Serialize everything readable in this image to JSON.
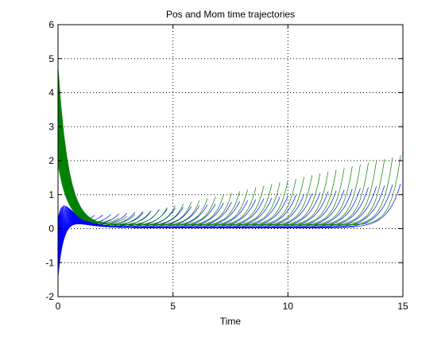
{
  "chart_data": {
    "type": "line",
    "title": "Pos and Mom time trajectories",
    "xlabel": "Time",
    "ylabel": "",
    "xlim": [
      0,
      15
    ],
    "ylim": [
      -2,
      6
    ],
    "xticks": [
      "0",
      "5",
      "10",
      "15"
    ],
    "yticks": [
      "-2",
      "-1",
      "0",
      "1",
      "2",
      "3",
      "4",
      "5",
      "6"
    ],
    "grid": true,
    "grid_style": "dotted",
    "family_count": 40,
    "series": [
      {
        "color": "#0000ff",
        "t_start": [
          0,
          0.05,
          0.1,
          0.2,
          0.35,
          0.5,
          0.7,
          0.9,
          1.2,
          1.5,
          2.0,
          2.5,
          3.0,
          4.0,
          5.0,
          6.0,
          7.0,
          8.0,
          9.0,
          10.0,
          11.0,
          12.0
        ],
        "value": [
          -1.45,
          -1.0,
          -0.7,
          -0.35,
          -0.12,
          0.0,
          0.05,
          0.06,
          0.05,
          0.04,
          0.03,
          0.02,
          0.01,
          0.005,
          0.0,
          0.0,
          0.0,
          0.0,
          0.0,
          0.0,
          0.0,
          0.0
        ],
        "start_range": [
          -1.45,
          0.3
        ],
        "hump_range": [
          0.5,
          1.2
        ],
        "tail_range": [
          1.25,
          14.9
        ],
        "end_range": [
          0.3,
          1.3
        ]
      },
      {
        "color": "#008000",
        "t_start": [
          0,
          0.05,
          0.1,
          0.2,
          0.35,
          0.5,
          0.7,
          0.9,
          1.2,
          1.5,
          2.0,
          2.5,
          3.0,
          4.0,
          5.0,
          6.0,
          7.0,
          8.0,
          9.0,
          10.0,
          11.0,
          12.0
        ],
        "value": [
          4.75,
          4.3,
          3.9,
          3.3,
          2.6,
          2.1,
          1.6,
          1.2,
          0.8,
          0.55,
          0.3,
          0.18,
          0.12,
          0.1,
          0.1,
          0.1,
          0.1,
          0.1,
          0.1,
          0.1,
          0.1,
          0.1
        ],
        "start_range": [
          1.9,
          4.75
        ],
        "plateau_range": [
          0.1,
          2.15
        ],
        "tail_range": [
          1.25,
          14.9
        ],
        "end_range": [
          0.25,
          2.15
        ]
      }
    ]
  }
}
